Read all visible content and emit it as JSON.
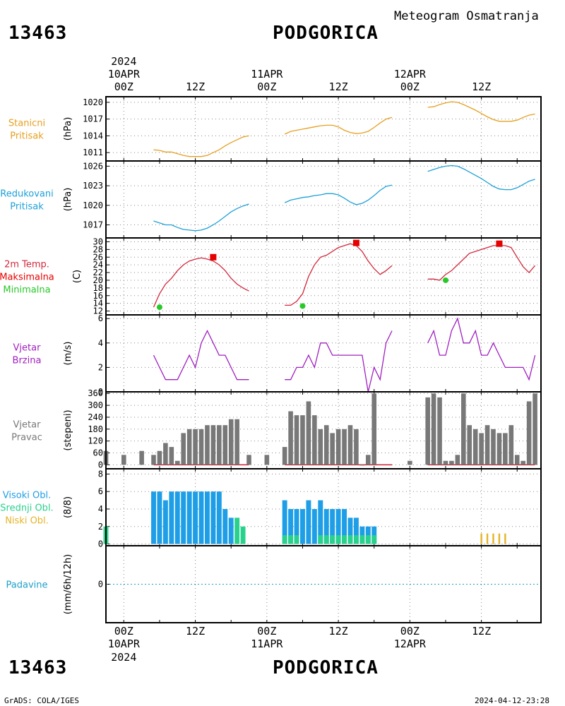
{
  "header": {
    "station_id": "13463",
    "station_name": "PODGORICA",
    "subtitle": "Meteogram Osmatranja"
  },
  "footer": {
    "station_id": "13463",
    "station_name": "PODGORICA",
    "credit": "GrADS: COLA/IGES",
    "timestamp": "2024-04-12-23:28"
  },
  "time_axis": {
    "year": "2024",
    "day_labels": [
      "10APR",
      "11APR",
      "12APR"
    ],
    "hour_labels": [
      "00Z",
      "12Z",
      "00Z",
      "12Z",
      "00Z",
      "12Z"
    ],
    "x_hours": [
      -3,
      70
    ]
  },
  "colors": {
    "pressure": "#e6a020",
    "reduced_pressure": "#1ea0d8",
    "temperature": "#d2283c",
    "max_temp": "#e60000",
    "min_temp": "#28c828",
    "wind": "#a020c0",
    "bars": "#787878",
    "high_cloud": "#1e9ee6",
    "mid_cloud": "#28d28c",
    "low_cloud": "#e6b428",
    "precip": "#1ea0c8"
  },
  "chart_data": [
    {
      "panel": "station_pressure",
      "type": "line",
      "label_lines": [
        "Stanicni",
        "Pritisak"
      ],
      "ylabel": "(hPa)",
      "yticks": [
        1011,
        1014,
        1017,
        1020
      ],
      "ylim": [
        1009.5,
        1021
      ],
      "color": "#e6a020",
      "segments": [
        {
          "x": [
            5,
            6,
            7,
            8,
            9,
            10,
            11,
            12,
            13,
            14,
            15,
            16,
            17,
            18,
            19,
            20,
            21
          ],
          "y": [
            1011.5,
            1011.4,
            1011.1,
            1011.1,
            1010.8,
            1010.5,
            1010.3,
            1010.3,
            1010.3,
            1010.5,
            1011.0,
            1011.5,
            1012.2,
            1012.8,
            1013.3,
            1013.8,
            1014.0
          ]
        },
        {
          "x": [
            27,
            28,
            29,
            30,
            31,
            32,
            33,
            34,
            35,
            36,
            37,
            38,
            39,
            40,
            41,
            42,
            43,
            44,
            45
          ],
          "y": [
            1014.3,
            1014.8,
            1015.0,
            1015.2,
            1015.4,
            1015.6,
            1015.8,
            1015.9,
            1015.9,
            1015.6,
            1015.0,
            1014.6,
            1014.4,
            1014.5,
            1014.8,
            1015.5,
            1016.3,
            1017.0,
            1017.3
          ]
        },
        {
          "x": [
            51,
            52,
            53,
            54,
            55,
            56,
            57,
            58,
            59,
            60,
            61,
            62,
            63,
            64,
            65,
            66,
            67,
            68,
            69
          ],
          "y": [
            1019.1,
            1019.2,
            1019.6,
            1019.9,
            1020.1,
            1020.0,
            1019.6,
            1019.1,
            1018.6,
            1018.0,
            1017.4,
            1016.9,
            1016.6,
            1016.6,
            1016.6,
            1016.8,
            1017.3,
            1017.7,
            1017.9
          ]
        }
      ]
    },
    {
      "panel": "reduced_pressure",
      "type": "line",
      "label_lines": [
        "Redukovani",
        "Pritisak"
      ],
      "ylabel": "(hPa)",
      "yticks": [
        1017,
        1020,
        1023,
        1026
      ],
      "ylim": [
        1015,
        1026.8
      ],
      "color": "#1ea0d8",
      "segments": [
        {
          "x": [
            5,
            6,
            7,
            8,
            9,
            10,
            11,
            12,
            13,
            14,
            15,
            16,
            17,
            18,
            19,
            20,
            21
          ],
          "y": [
            1017.6,
            1017.3,
            1017.0,
            1017.0,
            1016.6,
            1016.3,
            1016.2,
            1016.1,
            1016.2,
            1016.5,
            1017.0,
            1017.6,
            1018.3,
            1019.0,
            1019.5,
            1019.9,
            1020.2
          ]
        },
        {
          "x": [
            27,
            28,
            29,
            30,
            31,
            32,
            33,
            34,
            35,
            36,
            37,
            38,
            39,
            40,
            41,
            42,
            43,
            44,
            45
          ],
          "y": [
            1020.4,
            1020.8,
            1021.0,
            1021.2,
            1021.3,
            1021.5,
            1021.6,
            1021.8,
            1021.8,
            1021.6,
            1021.1,
            1020.5,
            1020.1,
            1020.3,
            1020.8,
            1021.5,
            1022.3,
            1022.9,
            1023.1
          ]
        },
        {
          "x": [
            51,
            52,
            53,
            54,
            55,
            56,
            57,
            58,
            59,
            60,
            61,
            62,
            63,
            64,
            65,
            66,
            67,
            68,
            69
          ],
          "y": [
            1025.2,
            1025.5,
            1025.8,
            1026.0,
            1026.1,
            1026.0,
            1025.6,
            1025.1,
            1024.6,
            1024.1,
            1023.5,
            1022.9,
            1022.5,
            1022.4,
            1022.4,
            1022.7,
            1023.2,
            1023.7,
            1024.0
          ]
        }
      ]
    },
    {
      "panel": "temperature",
      "type": "line",
      "label_lines": [
        "2m Temp.",
        "Maksimalna",
        "Minimalna"
      ],
      "label_colors": [
        "#d2283c",
        "#e60000",
        "#28c828"
      ],
      "ylabel": "(C)",
      "yticks": [
        12,
        14,
        16,
        18,
        20,
        22,
        24,
        26,
        28,
        30
      ],
      "ylim": [
        11,
        31
      ],
      "color": "#d2283c",
      "segments": [
        {
          "x": [
            5,
            6,
            7,
            8,
            9,
            10,
            11,
            12,
            13,
            14,
            15,
            16,
            17,
            18,
            19,
            20,
            21
          ],
          "y": [
            13.0,
            16.5,
            19.0,
            20.5,
            22.5,
            24.0,
            25.0,
            25.5,
            25.8,
            25.5,
            25.0,
            24.0,
            22.5,
            20.5,
            19.0,
            18.0,
            17.2
          ]
        },
        {
          "x": [
            27,
            28,
            29,
            30,
            31,
            32,
            33,
            34,
            35,
            36,
            37,
            38,
            39,
            40,
            41,
            42,
            43,
            44,
            45
          ],
          "y": [
            13.5,
            13.5,
            14.5,
            16.5,
            21.0,
            24.0,
            26.0,
            26.5,
            27.5,
            28.5,
            29.0,
            29.5,
            29.0,
            27.5,
            25.0,
            23.0,
            21.5,
            22.5,
            23.8
          ]
        },
        {
          "x": [
            51,
            52,
            53,
            54,
            55,
            56,
            57,
            58,
            59,
            60,
            61,
            62,
            63,
            64,
            65,
            66,
            67,
            68,
            69
          ],
          "y": [
            20.3,
            20.3,
            20.0,
            21.5,
            22.5,
            24.0,
            25.5,
            27.0,
            27.5,
            28.0,
            28.5,
            29.0,
            29.0,
            29.0,
            28.5,
            26.0,
            23.5,
            22.0,
            23.8
          ]
        }
      ],
      "max_points": {
        "x": [
          15,
          39,
          63
        ],
        "y": [
          26,
          29.7,
          29.5
        ]
      },
      "min_points": {
        "x": [
          6,
          30,
          54
        ],
        "y": [
          13,
          13.3,
          20
        ]
      }
    },
    {
      "panel": "wind_speed",
      "type": "line",
      "label_lines": [
        "Vjetar",
        "Brzina"
      ],
      "ylabel": "(m/s)",
      "yticks": [
        0,
        2,
        4,
        6
      ],
      "ylim": [
        0,
        6.3
      ],
      "color": "#a020c0",
      "segments": [
        {
          "x": [
            5,
            6,
            7,
            8,
            9,
            10,
            11,
            12,
            13,
            14,
            15,
            16,
            17,
            18,
            19,
            20,
            21
          ],
          "y": [
            3,
            2,
            1,
            1,
            1,
            2,
            3,
            2,
            4,
            5,
            4,
            3,
            3,
            2,
            1,
            1,
            1
          ]
        },
        {
          "x": [
            27,
            28,
            29,
            30,
            31,
            32,
            33,
            34,
            35,
            36,
            37,
            38,
            39,
            40,
            41,
            42,
            43,
            44,
            45
          ],
          "y": [
            1,
            1,
            2,
            2,
            3,
            2,
            4,
            4,
            3,
            3,
            3,
            3,
            3,
            3,
            0,
            2,
            1,
            4,
            5
          ]
        },
        {
          "x": [
            51,
            52,
            53,
            54,
            55,
            56,
            57,
            58,
            59,
            60,
            61,
            62,
            63,
            64,
            65,
            66,
            67,
            68,
            69
          ],
          "y": [
            4,
            5,
            3,
            3,
            5,
            6,
            4,
            4,
            5,
            3,
            3,
            4,
            3,
            2,
            2,
            2,
            2,
            1,
            3
          ]
        }
      ]
    },
    {
      "panel": "wind_direction",
      "type": "bar",
      "label_lines": [
        "Vjetar",
        "Pravac"
      ],
      "ylabel": "(stepeni)",
      "yticks": [
        0,
        60,
        120,
        180,
        240,
        300,
        360
      ],
      "ylim": [
        -20,
        368
      ],
      "color": "#787878",
      "x": [
        -3,
        0,
        3,
        5,
        6,
        7,
        8,
        9,
        10,
        11,
        12,
        13,
        14,
        15,
        16,
        17,
        18,
        19,
        21,
        24,
        27,
        28,
        29,
        30,
        31,
        32,
        33,
        34,
        35,
        36,
        37,
        38,
        39,
        40,
        41,
        42,
        48,
        51,
        52,
        53,
        54,
        55,
        56,
        57,
        58,
        59,
        60,
        61,
        62,
        63,
        64,
        65,
        66,
        67,
        68,
        69
      ],
      "values": [
        70,
        50,
        70,
        50,
        70,
        110,
        90,
        20,
        160,
        180,
        180,
        180,
        200,
        200,
        200,
        200,
        230,
        230,
        50,
        50,
        90,
        270,
        250,
        250,
        320,
        250,
        180,
        200,
        160,
        180,
        180,
        200,
        180,
        0,
        50,
        360,
        20,
        340,
        360,
        340,
        20,
        20,
        50,
        360,
        200,
        180,
        160,
        200,
        180,
        160,
        160,
        200,
        50,
        20,
        320,
        360
      ]
    },
    {
      "panel": "cloud_cover",
      "type": "bar",
      "label_lines": [
        "Visoki Obl.",
        "Srednji Obl.",
        "Niski Obl."
      ],
      "label_colors": [
        "#1e9ee6",
        "#28d28c",
        "#e6b428"
      ],
      "ylabel": "(8/8)",
      "yticks": [
        0,
        2,
        4,
        6,
        8
      ],
      "ylim": [
        -0.2,
        8.6
      ],
      "series": [
        {
          "name": "Visoki Obl.",
          "color": "#1e9ee6",
          "x": [
            5,
            6,
            7,
            8,
            9,
            10,
            11,
            12,
            13,
            14,
            15,
            16,
            17,
            18,
            27,
            28,
            29,
            30,
            31,
            32,
            33,
            34,
            35,
            36,
            37,
            38,
            39,
            40,
            41,
            42
          ],
          "values": [
            6,
            6,
            5,
            6,
            6,
            6,
            6,
            6,
            6,
            6,
            6,
            6,
            4,
            3,
            5,
            4,
            4,
            4,
            5,
            4,
            5,
            4,
            4,
            4,
            4,
            3,
            3,
            2,
            2,
            2
          ]
        },
        {
          "name": "Srednji Obl.",
          "color": "#28d28c",
          "x": [
            -3,
            19,
            20,
            27,
            28,
            29,
            33,
            34,
            35,
            36,
            37,
            38,
            39,
            40,
            41,
            42
          ],
          "values": [
            2,
            3,
            2,
            1,
            1,
            1,
            1,
            1,
            1,
            1,
            1,
            1,
            1,
            1,
            1,
            1
          ]
        },
        {
          "name": "Niski Obl.",
          "color": "#e6b428",
          "x": [
            60,
            61,
            62,
            63,
            64
          ],
          "values": [
            1.2,
            1.2,
            1.2,
            1.2,
            1.2
          ]
        }
      ]
    },
    {
      "panel": "precipitation",
      "type": "line",
      "label_lines": [
        "Padavine"
      ],
      "ylabel": "(mm/6h/12h)",
      "yticks": [
        0
      ],
      "ylim": [
        -1,
        1
      ],
      "color": "#1ea0c8",
      "values": [
        0
      ]
    }
  ]
}
